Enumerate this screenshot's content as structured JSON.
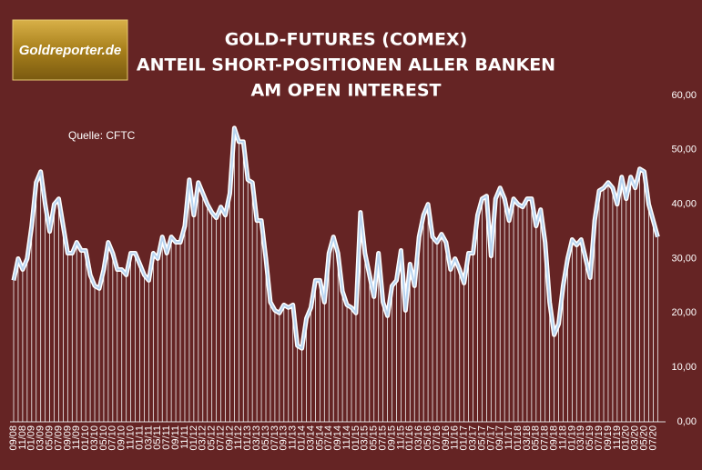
{
  "chart_data": {
    "type": "line",
    "title": [
      "GOLD-FUTURES (COMEX)",
      "ANTEIL SHORT-POSITIONEN ALLER BANKEN",
      "AM OPEN INTEREST"
    ],
    "logo": "Goldreporter.de",
    "annotation": "Quelle: CFTC",
    "categories": [
      "09/08",
      null,
      "11/08",
      null,
      "01/09",
      null,
      "03/09",
      null,
      "05/09",
      null,
      "07/09",
      null,
      "09/09",
      null,
      "11/09",
      null,
      "01/10",
      null,
      "03/10",
      null,
      "05/10",
      null,
      "07/10",
      null,
      "09/10",
      null,
      "11/10",
      null,
      "01/11",
      null,
      "03/11",
      null,
      "05/11",
      null,
      "07/11",
      null,
      "09/11",
      null,
      "11/11",
      null,
      "01/12",
      null,
      "03/12",
      null,
      "05/12",
      null,
      "07/12",
      null,
      "09/12",
      null,
      "11/12",
      null,
      "01/13",
      null,
      "03/13",
      null,
      "05/13",
      null,
      "07/13",
      null,
      "09/13",
      null,
      "11/13",
      null,
      "01/14",
      null,
      "03/14",
      null,
      "05/14",
      null,
      "07/14",
      null,
      "09/14",
      null,
      "11/14",
      null,
      "01/15",
      null,
      "03/15",
      null,
      "05/15",
      null,
      "07/15",
      null,
      "09/15",
      null,
      "11/15",
      null,
      "01/16",
      null,
      "03/16",
      null,
      "05/16",
      null,
      "07/16",
      null,
      "09/16",
      null,
      "11/16",
      null,
      "01/17",
      null,
      "03/17",
      null,
      "05/17",
      null,
      "07/17",
      null,
      "09/17",
      null,
      "11/17",
      null,
      "01/18",
      null,
      "03/18",
      null,
      "05/18",
      null,
      "07/18",
      null,
      "09/18",
      null,
      "11/18",
      null,
      "01/19",
      null,
      "03/19",
      null,
      "05/19",
      null,
      "07/19",
      null,
      "09/19",
      null,
      "11/19",
      null,
      "01/20",
      null,
      "03/20",
      null,
      "05/20",
      null,
      "07/20",
      null
    ],
    "values": [
      26,
      30,
      28,
      30,
      36,
      44,
      46,
      40,
      35,
      40,
      41,
      36,
      31,
      31,
      33,
      31.5,
      31.5,
      27,
      25,
      24.5,
      28,
      33,
      31,
      28,
      28,
      27,
      31,
      31,
      29,
      27,
      26,
      31,
      30,
      34,
      31,
      34,
      33,
      33,
      36,
      44.5,
      38,
      44,
      42,
      40,
      38.5,
      37.5,
      39.5,
      38,
      42,
      54,
      51.5,
      51.5,
      44.5,
      44,
      37,
      37,
      30,
      22,
      20.5,
      20,
      21.5,
      21,
      21.5,
      14,
      13.5,
      19,
      21,
      26,
      26,
      22,
      31,
      34,
      31,
      24,
      21.5,
      21,
      20,
      38.5,
      31,
      27,
      23,
      31,
      22,
      19.5,
      25,
      26,
      31.5,
      20.5,
      29,
      25,
      34,
      38,
      40,
      34,
      33,
      34.5,
      33,
      28,
      30,
      28,
      25.5,
      31,
      31,
      38,
      41,
      41.5,
      30.5,
      41,
      43,
      41,
      37,
      41,
      40,
      39.5,
      41,
      41,
      36,
      39,
      33,
      22,
      16,
      18,
      25,
      30,
      33.5,
      32.5,
      33.5,
      30,
      26.5,
      37,
      42.5,
      43,
      44,
      43,
      40,
      45,
      41,
      45,
      43,
      46.5,
      46,
      40,
      37,
      34
    ],
    "color": "#b8d4f0",
    "ylim": [
      0,
      60
    ],
    "yticks": [
      {
        "value": 0,
        "label": "0,00"
      },
      {
        "value": 10,
        "label": "10,00"
      },
      {
        "value": 20,
        "label": "20,00"
      },
      {
        "value": 30,
        "label": "30,00"
      },
      {
        "value": 40,
        "label": "40,00"
      },
      {
        "value": 50,
        "label": "50,00"
      },
      {
        "value": 60,
        "label": "60,00"
      }
    ],
    "grid": false
  }
}
